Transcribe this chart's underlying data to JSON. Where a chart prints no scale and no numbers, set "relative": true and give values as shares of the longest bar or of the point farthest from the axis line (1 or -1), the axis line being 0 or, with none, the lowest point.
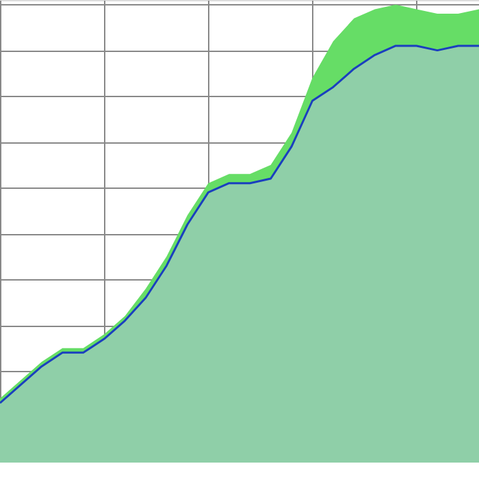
{
  "chart_data": {
    "type": "area",
    "relative": true,
    "grid": true,
    "categories": [
      null,
      null,
      null,
      null,
      null,
      null,
      null,
      null,
      null,
      null,
      null,
      null,
      null,
      null,
      null,
      null,
      null,
      null,
      null,
      null,
      null,
      null,
      null,
      null
    ],
    "series": [
      {
        "type": "area",
        "color": "#66dd66",
        "values": [
          0.14,
          0.18,
          0.22,
          0.25,
          0.25,
          0.28,
          0.32,
          0.38,
          0.45,
          0.54,
          0.61,
          0.63,
          0.63,
          0.65,
          0.72,
          0.84,
          0.92,
          0.97,
          0.99,
          1.0,
          0.99,
          0.98,
          0.98,
          0.99
        ]
      },
      {
        "type": "area",
        "color": "#8fcfa8",
        "values": [
          0.13,
          0.17,
          0.21,
          0.24,
          0.24,
          0.27,
          0.31,
          0.36,
          0.43,
          0.52,
          0.59,
          0.61,
          0.61,
          0.62,
          0.69,
          0.79,
          0.82,
          0.86,
          0.89,
          0.91,
          0.91,
          0.9,
          0.91,
          0.91
        ]
      },
      {
        "type": "line",
        "color": "#1a3fbf",
        "values": [
          0.13,
          0.17,
          0.21,
          0.24,
          0.24,
          0.27,
          0.31,
          0.36,
          0.43,
          0.52,
          0.59,
          0.61,
          0.61,
          0.62,
          0.69,
          0.79,
          0.82,
          0.86,
          0.89,
          0.91,
          0.91,
          0.9,
          0.91,
          0.91
        ]
      }
    ]
  }
}
